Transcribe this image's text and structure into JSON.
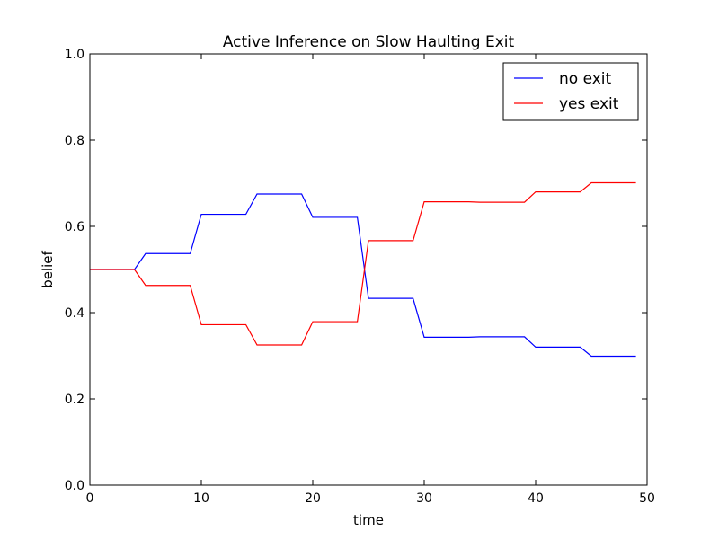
{
  "chart_data": {
    "type": "line",
    "title": "Active Inference on Slow Haulting Exit",
    "xlabel": "time",
    "ylabel": "belief",
    "xlim": [
      0,
      50
    ],
    "ylim": [
      0,
      1
    ],
    "x_ticks": [
      "0",
      "10",
      "20",
      "30",
      "40",
      "50"
    ],
    "y_ticks": [
      "0.0",
      "0.2",
      "0.4",
      "0.6",
      "0.8",
      "1.0"
    ],
    "x_tick_values": [
      0,
      10,
      20,
      30,
      40,
      50
    ],
    "y_tick_values": [
      0,
      0.2,
      0.4,
      0.6,
      0.8,
      1.0
    ],
    "grid": false,
    "legend_position": "top-right",
    "x": [
      0,
      1,
      2,
      3,
      4,
      5,
      6,
      7,
      8,
      9,
      10,
      11,
      12,
      13,
      14,
      15,
      16,
      17,
      18,
      19,
      20,
      21,
      22,
      23,
      24,
      25,
      26,
      27,
      28,
      29,
      30,
      31,
      32,
      33,
      34,
      35,
      36,
      37,
      38,
      39,
      40,
      41,
      42,
      43,
      44,
      45,
      46,
      47,
      48,
      49
    ],
    "series": [
      {
        "name": "no exit",
        "color": "#0000ff",
        "values": [
          0.5,
          0.5,
          0.5,
          0.5,
          0.5,
          0.537,
          0.537,
          0.537,
          0.537,
          0.537,
          0.628,
          0.628,
          0.628,
          0.628,
          0.628,
          0.675,
          0.675,
          0.675,
          0.675,
          0.675,
          0.621,
          0.621,
          0.621,
          0.621,
          0.621,
          0.433,
          0.433,
          0.433,
          0.433,
          0.433,
          0.343,
          0.343,
          0.343,
          0.343,
          0.343,
          0.344,
          0.344,
          0.344,
          0.344,
          0.344,
          0.32,
          0.32,
          0.32,
          0.32,
          0.32,
          0.299,
          0.299,
          0.299,
          0.299,
          0.299
        ]
      },
      {
        "name": "yes exit",
        "color": "#ff0000",
        "values": [
          0.5,
          0.5,
          0.5,
          0.5,
          0.5,
          0.463,
          0.463,
          0.463,
          0.463,
          0.463,
          0.372,
          0.372,
          0.372,
          0.372,
          0.372,
          0.325,
          0.325,
          0.325,
          0.325,
          0.325,
          0.379,
          0.379,
          0.379,
          0.379,
          0.379,
          0.567,
          0.567,
          0.567,
          0.567,
          0.567,
          0.657,
          0.657,
          0.657,
          0.657,
          0.657,
          0.656,
          0.656,
          0.656,
          0.656,
          0.656,
          0.68,
          0.68,
          0.68,
          0.68,
          0.68,
          0.701,
          0.701,
          0.701,
          0.701,
          0.701
        ]
      }
    ]
  }
}
